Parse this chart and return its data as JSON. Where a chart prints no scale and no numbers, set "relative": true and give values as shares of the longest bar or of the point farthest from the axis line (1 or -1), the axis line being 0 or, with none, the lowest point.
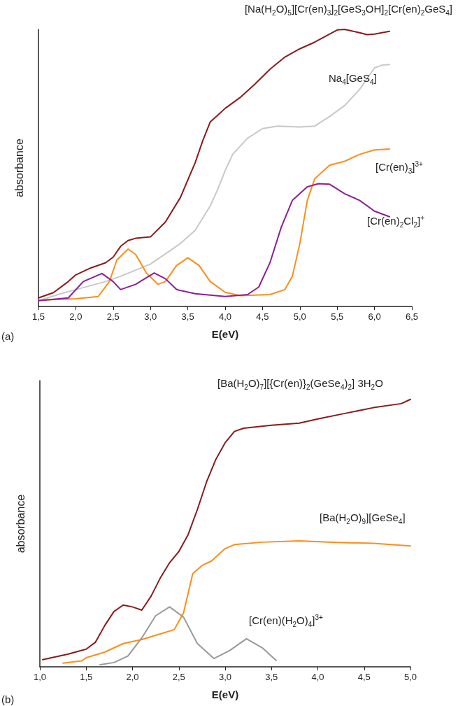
{
  "chart_data": [
    {
      "type": "line",
      "relative": true,
      "xlabel": "E(eV)",
      "ylabel": "absorbance",
      "annotations": [
        "(a)"
      ],
      "marker": "none",
      "tick_labels": "x",
      "xlim": [
        1.5,
        6.5
      ],
      "xticks": [
        {
          "value": 1.5,
          "label": "1,5"
        },
        {
          "value": 2,
          "label": "2,0"
        },
        {
          "value": 2.5,
          "label": "2,5"
        },
        {
          "value": 3,
          "label": "3,0"
        },
        {
          "value": 3.5,
          "label": "3,5"
        },
        {
          "value": 4,
          "label": "4,0"
        },
        {
          "value": 4.5,
          "label": "4,5"
        },
        {
          "value": 5,
          "label": "5,0"
        },
        {
          "value": 5.5,
          "label": "5,5"
        },
        {
          "value": 6,
          "label": "6,0"
        },
        {
          "value": 6.5,
          "label": "6,5"
        }
      ],
      "series": [
        {
          "name": "[Na(H$_{2}$O)$_{5}$][Cr(en)$_{3}$]$_{2}$[GeS$_{3}$OH]$_{2}$[Cr(en)$_{2}$GeS$_{4}$]",
          "color": "#8b1a1a",
          "x": [
            1.5,
            1.7,
            1.9,
            2.0,
            2.2,
            2.4,
            2.5,
            2.6,
            2.7,
            2.8,
            3.0,
            3.2,
            3.4,
            3.6,
            3.7,
            3.8,
            3.9,
            4.0,
            4.2,
            4.4,
            4.6,
            4.8,
            5.0,
            5.2,
            5.4,
            5.5,
            5.6,
            5.8,
            5.9,
            6.0,
            6.2
          ],
          "values": [
            0.031,
            0.05,
            0.09,
            0.114,
            0.139,
            0.158,
            0.178,
            0.217,
            0.238,
            0.246,
            0.251,
            0.305,
            0.393,
            0.52,
            0.598,
            0.666,
            0.69,
            0.715,
            0.754,
            0.803,
            0.856,
            0.9,
            0.93,
            0.954,
            0.983,
            0.998,
            1,
            0.988,
            0.981,
            0.983,
            0.993
          ]
        },
        {
          "name": "Na$_{4}$[GeS$_{4}$]",
          "color": "#c8c8c8",
          "x": [
            1.5,
            1.8,
            2.0,
            2.4,
            2.6,
            3.0,
            3.4,
            3.6,
            3.8,
            3.9,
            4.0,
            4.1,
            4.3,
            4.5,
            4.7,
            5.0,
            5.2,
            5.4,
            5.6,
            5.8,
            6.0,
            6.1,
            6.2
          ],
          "values": [
            0.021,
            0.046,
            0.061,
            0.09,
            0.109,
            0.153,
            0.227,
            0.275,
            0.363,
            0.422,
            0.49,
            0.549,
            0.607,
            0.642,
            0.651,
            0.648,
            0.651,
            0.686,
            0.725,
            0.783,
            0.861,
            0.871,
            0.873
          ]
        },
        {
          "name": "[Cr(en)$_{3}$]$^{3+}$",
          "color": "#ff8c1a",
          "x": [
            1.5,
            2.0,
            2.3,
            2.45,
            2.55,
            2.7,
            2.8,
            2.95,
            3.1,
            3.2,
            3.35,
            3.5,
            3.65,
            3.8,
            4.0,
            4.2,
            4.6,
            4.8,
            4.9,
            5.0,
            5.1,
            5.2,
            5.4,
            5.6,
            5.8,
            6.0,
            6.2
          ],
          "values": [
            0.023,
            0.028,
            0.036,
            0.09,
            0.168,
            0.207,
            0.188,
            0.119,
            0.08,
            0.09,
            0.148,
            0.176,
            0.148,
            0.09,
            0.051,
            0.039,
            0.043,
            0.061,
            0.109,
            0.227,
            0.383,
            0.461,
            0.51,
            0.524,
            0.549,
            0.565,
            0.568
          ]
        },
        {
          "name": "[Cr(en)$_{2}$Cl$_{2}$]$^{+}$",
          "color": "#8b1f96",
          "x": [
            1.5,
            1.9,
            2.1,
            2.35,
            2.5,
            2.6,
            2.8,
            3.05,
            3.2,
            3.35,
            3.6,
            3.8,
            4.0,
            4.3,
            4.45,
            4.6,
            4.75,
            4.9,
            5.1,
            5.25,
            5.4,
            5.6,
            5.8,
            6.0,
            6.2
          ],
          "values": [
            0.021,
            0.031,
            0.09,
            0.119,
            0.09,
            0.061,
            0.08,
            0.121,
            0.1,
            0.061,
            0.046,
            0.041,
            0.036,
            0.043,
            0.07,
            0.158,
            0.285,
            0.383,
            0.432,
            0.443,
            0.441,
            0.407,
            0.383,
            0.344,
            0.324
          ]
        }
      ]
    },
    {
      "type": "line",
      "relative": true,
      "xlabel": "E(eV)",
      "ylabel": "absorbance",
      "annotations": [
        "(b)"
      ],
      "marker": "none",
      "tick_labels": "x",
      "xlim": [
        1.0,
        5.0
      ],
      "xticks": [
        {
          "value": 1,
          "label": "1,0"
        },
        {
          "value": 1.5,
          "label": "1,5"
        },
        {
          "value": 2,
          "label": "2,0"
        },
        {
          "value": 2.5,
          "label": "2,5"
        },
        {
          "value": 3,
          "label": "3,0"
        },
        {
          "value": 3.5,
          "label": "3,5"
        },
        {
          "value": 4,
          "label": "4,0"
        },
        {
          "value": 4.5,
          "label": "4,5"
        },
        {
          "value": 5,
          "label": "5,0"
        }
      ],
      "series": [
        {
          "name": "[Ba(H$_{2}$O)$_{7}$][{Cr(en)}$_{2}$(GeSe$_{4}$)$_{2}$] 3H$_{2}$O",
          "color": "#8b1a1a",
          "x": [
            1.03,
            1.3,
            1.5,
            1.6,
            1.7,
            1.8,
            1.9,
            2.0,
            2.1,
            2.2,
            2.3,
            2.4,
            2.5,
            2.6,
            2.7,
            2.8,
            2.9,
            3.0,
            3.1,
            3.2,
            3.5,
            3.8,
            4.0,
            4.3,
            4.6,
            4.9,
            5.0
          ],
          "values": [
            0.027,
            0.047,
            0.066,
            0.092,
            0.154,
            0.207,
            0.231,
            0.224,
            0.212,
            0.264,
            0.332,
            0.389,
            0.431,
            0.494,
            0.588,
            0.692,
            0.776,
            0.838,
            0.88,
            0.892,
            0.903,
            0.911,
            0.927,
            0.948,
            0.969,
            0.984,
            1
          ]
        },
        {
          "name": "[Ba(H$_{2}$O)$_{9}$][GeSe$_{4}$]",
          "color": "#ff8c1a",
          "x": [
            1.25,
            1.45,
            1.5,
            1.7,
            1.9,
            2.1,
            2.3,
            2.45,
            2.55,
            2.65,
            2.75,
            2.85,
            3.0,
            3.1,
            3.4,
            3.8,
            4.2,
            4.6,
            5.0
          ],
          "values": [
            0.014,
            0.022,
            0.034,
            0.055,
            0.087,
            0.102,
            0.123,
            0.139,
            0.201,
            0.348,
            0.379,
            0.395,
            0.442,
            0.457,
            0.466,
            0.471,
            0.465,
            0.462,
            0.452
          ]
        },
        {
          "name": "[Cr(en)(H$_{2}$O)$_{4}$]$^{3+}$",
          "color": "#999999",
          "x": [
            1.65,
            1.8,
            1.95,
            2.1,
            2.25,
            2.4,
            2.55,
            2.7,
            2.88,
            3.05,
            3.23,
            3.4,
            3.55
          ],
          "values": [
            0.008,
            0.016,
            0.04,
            0.108,
            0.191,
            0.224,
            0.186,
            0.087,
            0.031,
            0.061,
            0.105,
            0.071,
            0.024
          ]
        }
      ]
    }
  ]
}
